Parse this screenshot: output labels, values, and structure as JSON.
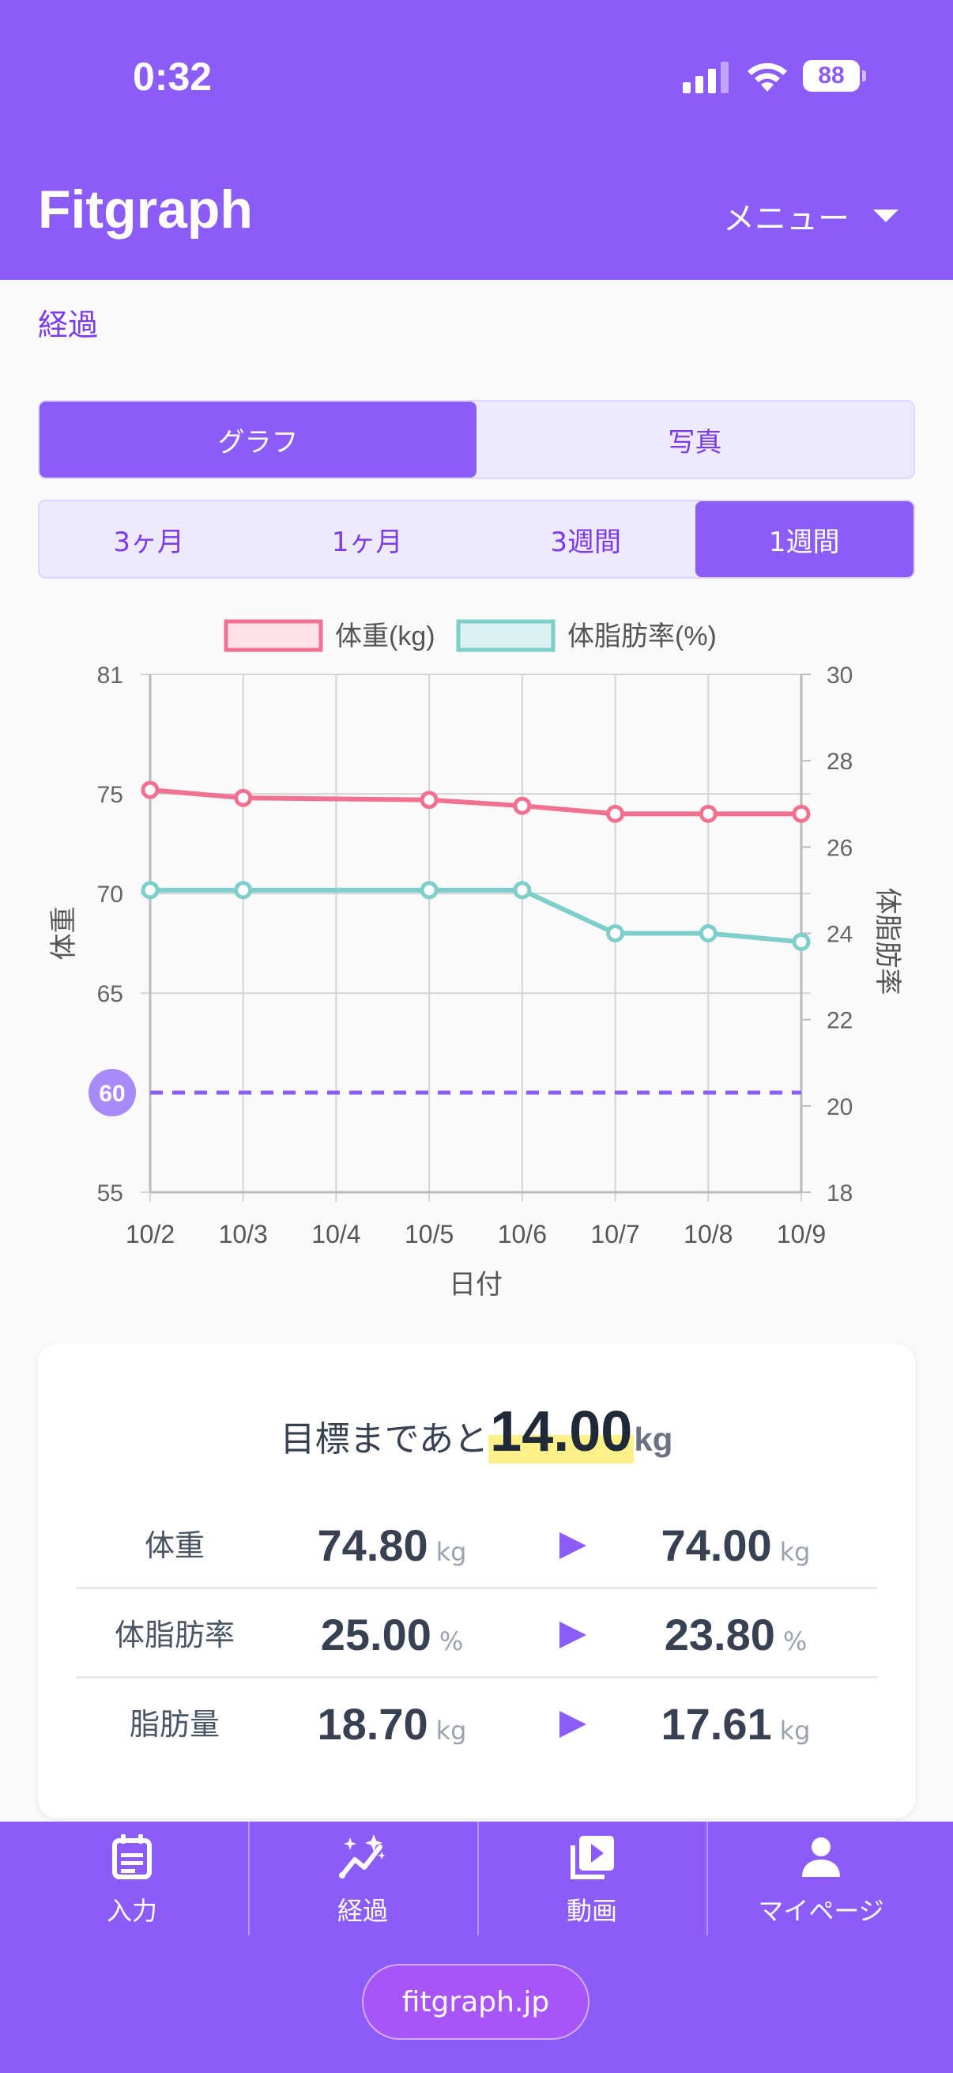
{
  "status": {
    "time": "0:32",
    "battery": "88"
  },
  "header": {
    "title": "Fitgraph",
    "menu_label": "メニュー"
  },
  "breadcrumb": "経過",
  "view_tabs": [
    {
      "label": "グラフ",
      "active": true
    },
    {
      "label": "写真",
      "active": false
    }
  ],
  "range_tabs": [
    {
      "label": "3ヶ月",
      "active": false
    },
    {
      "label": "1ヶ月",
      "active": false
    },
    {
      "label": "3週間",
      "active": false
    },
    {
      "label": "1週間",
      "active": true
    }
  ],
  "chart_data": {
    "type": "line",
    "x": [
      "10/2",
      "10/3",
      "10/4",
      "10/5",
      "10/6",
      "10/7",
      "10/8",
      "10/9"
    ],
    "xlabel": "日付",
    "ylabel_left": "体重",
    "ylabel_right": "体脂肪率",
    "ylim_left": [
      55,
      81
    ],
    "ylim_right": [
      18,
      30
    ],
    "yticks_left": [
      55,
      65,
      70,
      75,
      81
    ],
    "yticks_right": [
      18,
      20,
      22,
      24,
      26,
      28,
      30
    ],
    "goal_line": {
      "value": 60,
      "axis": "left",
      "style": "dashed",
      "color": "#8b5cf6"
    },
    "grid": true,
    "legend_position": "top",
    "series": [
      {
        "name": "体重(kg)",
        "axis": "left",
        "color": "#f0728f",
        "values": [
          75.2,
          74.8,
          null,
          74.7,
          74.4,
          74.0,
          74.0,
          74.0
        ]
      },
      {
        "name": "体脂肪率(%)",
        "axis": "right",
        "color": "#7ecfcb",
        "values": [
          25.0,
          25.0,
          null,
          25.0,
          25.0,
          24.0,
          24.0,
          23.8
        ]
      }
    ]
  },
  "summary": {
    "goal_prefix": "目標まであと",
    "goal_value": "14.00",
    "goal_unit": "kg",
    "rows": [
      {
        "label": "体重",
        "from": "74.80",
        "to": "74.00",
        "unit": "kg"
      },
      {
        "label": "体脂肪率",
        "from": "25.00",
        "to": "23.80",
        "unit": "%"
      },
      {
        "label": "脂肪量",
        "from": "18.70",
        "to": "17.61",
        "unit": "kg"
      }
    ]
  },
  "tabbar": {
    "items": [
      {
        "label": "入力",
        "icon": "calendar-list-icon"
      },
      {
        "label": "経過",
        "icon": "sparkle-chart-icon"
      },
      {
        "label": "動画",
        "icon": "video-library-icon"
      },
      {
        "label": "マイページ",
        "icon": "person-icon"
      }
    ],
    "site": "fitgraph.jp"
  }
}
